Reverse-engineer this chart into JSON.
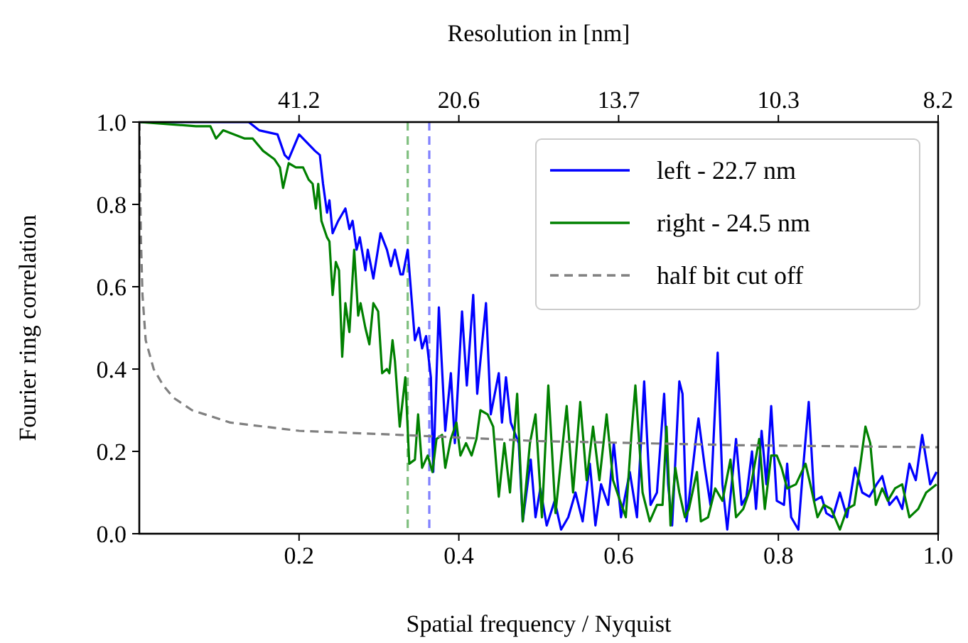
{
  "chart_data": {
    "type": "line",
    "xlabel": "Spatial frequency / Nyquist",
    "ylabel": "Fourier ring correlation",
    "x2label": "Resolution in [nm]",
    "xlim": [
      0,
      1
    ],
    "xticks": [
      0.2,
      0.4,
      0.6,
      0.8,
      {
        "value": 1,
        "label": "1.0"
      }
    ],
    "annotations": [
      {
        "text": "41.2",
        "x": 0.2
      },
      {
        "text": "20.6",
        "x": 0.4
      },
      {
        "text": "13.7",
        "x": 0.6
      },
      {
        "text": "10.3",
        "x": 0.8
      },
      {
        "text": "8.2",
        "x": 1
      }
    ],
    "ylim": [
      0,
      1
    ],
    "yticks": [
      {
        "value": 0,
        "label": "0.0"
      },
      0.2,
      0.4,
      0.6,
      0.8,
      {
        "value": 1,
        "label": "1.0"
      }
    ],
    "legend": "top right",
    "grid": false,
    "ref_lines": [
      {
        "axis": "x",
        "value": 0.336,
        "color": "#80c080",
        "line_style": "dashed"
      },
      {
        "axis": "x",
        "value": 0.363,
        "color": "#8080ff",
        "line_style": "dashed"
      }
    ],
    "series": [
      {
        "name": "left - 22.7 nm",
        "color": "#0000ff",
        "line_style": "solid",
        "x": [
          0,
          0.137,
          0.15,
          0.173,
          0.182,
          0.187,
          0.2,
          0.22,
          0.226,
          0.23,
          0.235,
          0.238,
          0.242,
          0.249,
          0.258,
          0.263,
          0.267,
          0.272,
          0.276,
          0.283,
          0.286,
          0.293,
          0.302,
          0.31,
          0.315,
          0.32,
          0.327,
          0.33,
          0.336,
          0.345,
          0.35,
          0.354,
          0.359,
          0.365,
          0.368,
          0.375,
          0.383,
          0.39,
          0.395,
          0.404,
          0.41,
          0.418,
          0.423,
          0.434,
          0.44,
          0.45,
          0.454,
          0.459,
          0.465,
          0.475,
          0.48,
          0.49,
          0.496,
          0.502,
          0.51,
          0.52,
          0.528,
          0.537,
          0.546,
          0.555,
          0.564,
          0.571,
          0.578,
          0.587,
          0.594,
          0.603,
          0.614,
          0.623,
          0.632,
          0.64,
          0.648,
          0.657,
          0.662,
          0.667,
          0.676,
          0.68,
          0.685,
          0.698,
          0.7,
          0.708,
          0.715,
          0.724,
          0.73,
          0.736,
          0.747,
          0.754,
          0.76,
          0.767,
          0.772,
          0.779,
          0.785,
          0.791,
          0.798,
          0.807,
          0.811,
          0.816,
          0.825,
          0.831,
          0.838,
          0.845,
          0.854,
          0.86,
          0.868,
          0.877,
          0.886,
          0.896,
          0.905,
          0.914,
          0.923,
          0.93,
          0.939,
          0.948,
          0.955,
          0.964,
          0.972,
          0.98,
          0.99,
          0.998
        ],
        "values": [
          1.0,
          1.0,
          0.98,
          0.97,
          0.92,
          0.91,
          0.97,
          0.93,
          0.92,
          0.85,
          0.78,
          0.81,
          0.73,
          0.76,
          0.79,
          0.74,
          0.76,
          0.69,
          0.72,
          0.64,
          0.69,
          0.62,
          0.73,
          0.69,
          0.65,
          0.69,
          0.63,
          0.63,
          0.69,
          0.47,
          0.5,
          0.45,
          0.48,
          0.38,
          0.15,
          0.55,
          0.25,
          0.39,
          0.22,
          0.54,
          0.36,
          0.58,
          0.34,
          0.56,
          0.29,
          0.39,
          0.27,
          0.38,
          0.27,
          0.22,
          0.03,
          0.18,
          0.04,
          0.11,
          0.02,
          0.08,
          0.01,
          0.04,
          0.1,
          0.03,
          0.17,
          0.02,
          0.12,
          0.07,
          0.22,
          0.04,
          0.15,
          0.04,
          0.37,
          0.07,
          0.1,
          0.34,
          0.12,
          0.02,
          0.37,
          0.34,
          0.03,
          0.25,
          0.28,
          0.16,
          0.07,
          0.44,
          0.12,
          0.01,
          0.23,
          0.07,
          0.09,
          0.2,
          0.06,
          0.25,
          0.12,
          0.31,
          0.08,
          0.07,
          0.17,
          0.04,
          0.01,
          0.16,
          0.32,
          0.08,
          0.09,
          0.05,
          0.04,
          0.1,
          0.04,
          0.16,
          0.1,
          0.09,
          0.12,
          0.14,
          0.07,
          0.09,
          0.06,
          0.17,
          0.13,
          0.24,
          0.12,
          0.15
        ]
      },
      {
        "name": "right - 24.5 nm",
        "color": "#008000",
        "line_style": "solid",
        "x": [
          0,
          0.071,
          0.089,
          0.096,
          0.105,
          0.132,
          0.142,
          0.155,
          0.169,
          0.176,
          0.18,
          0.187,
          0.196,
          0.205,
          0.212,
          0.217,
          0.221,
          0.224,
          0.228,
          0.235,
          0.238,
          0.242,
          0.246,
          0.25,
          0.254,
          0.258,
          0.263,
          0.269,
          0.274,
          0.277,
          0.283,
          0.288,
          0.293,
          0.299,
          0.304,
          0.31,
          0.313,
          0.317,
          0.32,
          0.326,
          0.333,
          0.338,
          0.345,
          0.349,
          0.354,
          0.361,
          0.367,
          0.372,
          0.379,
          0.383,
          0.39,
          0.397,
          0.402,
          0.409,
          0.416,
          0.422,
          0.427,
          0.436,
          0.443,
          0.45,
          0.457,
          0.464,
          0.473,
          0.48,
          0.489,
          0.496,
          0.504,
          0.512,
          0.521,
          0.528,
          0.535,
          0.543,
          0.552,
          0.56,
          0.568,
          0.576,
          0.585,
          0.593,
          0.6,
          0.609,
          0.616,
          0.621,
          0.63,
          0.639,
          0.648,
          0.655,
          0.66,
          0.665,
          0.671,
          0.676,
          0.683,
          0.688,
          0.698,
          0.703,
          0.712,
          0.721,
          0.73,
          0.74,
          0.747,
          0.756,
          0.765,
          0.776,
          0.783,
          0.791,
          0.798,
          0.804,
          0.811,
          0.822,
          0.834,
          0.84,
          0.849,
          0.857,
          0.866,
          0.877,
          0.886,
          0.895,
          0.902,
          0.909,
          0.915,
          0.922,
          0.93,
          0.937,
          0.946,
          0.955,
          0.964,
          0.975,
          0.985,
          0.998
        ],
        "values": [
          1.0,
          0.99,
          0.99,
          0.96,
          0.98,
          0.96,
          0.96,
          0.93,
          0.91,
          0.89,
          0.84,
          0.9,
          0.89,
          0.89,
          0.86,
          0.85,
          0.79,
          0.85,
          0.76,
          0.72,
          0.71,
          0.58,
          0.66,
          0.64,
          0.43,
          0.56,
          0.49,
          0.69,
          0.53,
          0.56,
          0.5,
          0.46,
          0.56,
          0.54,
          0.39,
          0.4,
          0.39,
          0.47,
          0.42,
          0.26,
          0.38,
          0.17,
          0.18,
          0.29,
          0.16,
          0.19,
          0.15,
          0.23,
          0.24,
          0.16,
          0.23,
          0.27,
          0.19,
          0.22,
          0.19,
          0.23,
          0.3,
          0.29,
          0.26,
          0.09,
          0.22,
          0.1,
          0.34,
          0.03,
          0.22,
          0.29,
          0.04,
          0.36,
          0.05,
          0.18,
          0.31,
          0.1,
          0.32,
          0.13,
          0.26,
          0.13,
          0.29,
          0.13,
          0.09,
          0.04,
          0.24,
          0.36,
          0.1,
          0.03,
          0.07,
          0.07,
          0.26,
          0.02,
          0.16,
          0.1,
          0.04,
          0.06,
          0.15,
          0.03,
          0.04,
          0.11,
          0.08,
          0.18,
          0.04,
          0.06,
          0.11,
          0.23,
          0.06,
          0.19,
          0.19,
          0.16,
          0.11,
          0.12,
          0.17,
          0.12,
          0.04,
          0.07,
          0.06,
          0.01,
          0.06,
          0.07,
          0.16,
          0.26,
          0.22,
          0.07,
          0.11,
          0.08,
          0.11,
          0.12,
          0.04,
          0.06,
          0.1,
          0.12
        ]
      },
      {
        "name": "half bit cut off",
        "color": "#808080",
        "line_style": "dashed",
        "x": [
          0,
          0.002,
          0.004,
          0.008,
          0.018,
          0.03,
          0.043,
          0.066,
          0.114,
          0.2,
          0.327,
          0.5,
          0.75,
          1.0
        ],
        "values": [
          1.0,
          0.72,
          0.58,
          0.47,
          0.4,
          0.36,
          0.33,
          0.3,
          0.27,
          0.25,
          0.24,
          0.225,
          0.215,
          0.21
        ]
      }
    ]
  }
}
